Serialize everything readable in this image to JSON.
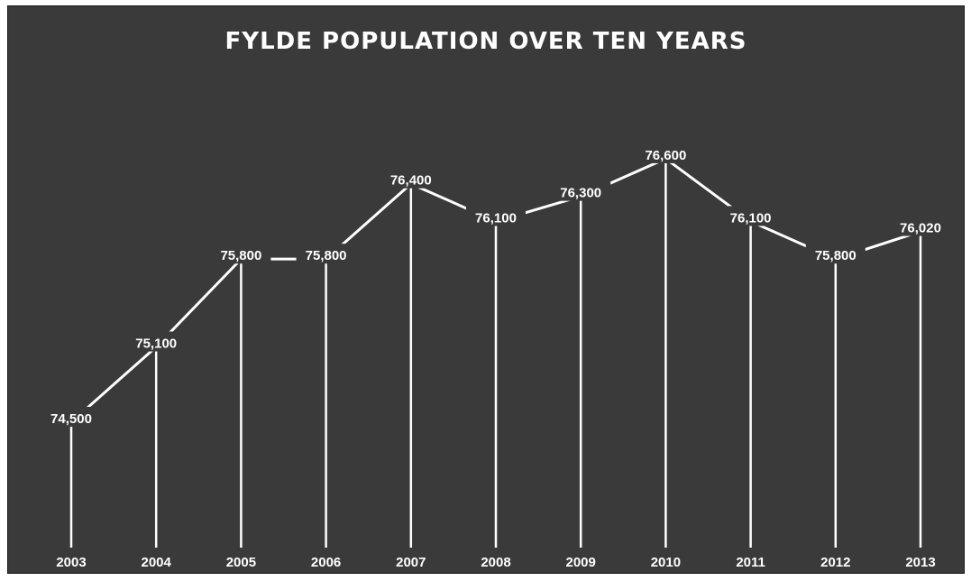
{
  "chart_data": {
    "type": "line",
    "title": "FYLDE POPULATION OVER TEN YEARS",
    "categories": [
      "2003",
      "2004",
      "2005",
      "2006",
      "2007",
      "2008",
      "2009",
      "2010",
      "2011",
      "2012",
      "2013"
    ],
    "values": [
      74500,
      75100,
      75800,
      75800,
      76400,
      76100,
      76300,
      76600,
      76100,
      75800,
      76020
    ],
    "data_labels": [
      "74,500",
      "75,100",
      "75,800",
      "75,800",
      "76,400",
      "76,100",
      "76,300",
      "76,600",
      "76,100",
      "75,800",
      "76,020"
    ],
    "ylim": [
      73500,
      76700
    ],
    "grid": false,
    "legend": "none",
    "colors": {
      "background": "#3a3a3a",
      "line": "#ffffff",
      "drop_line": "#ffffff",
      "text": "#ffffff"
    }
  }
}
